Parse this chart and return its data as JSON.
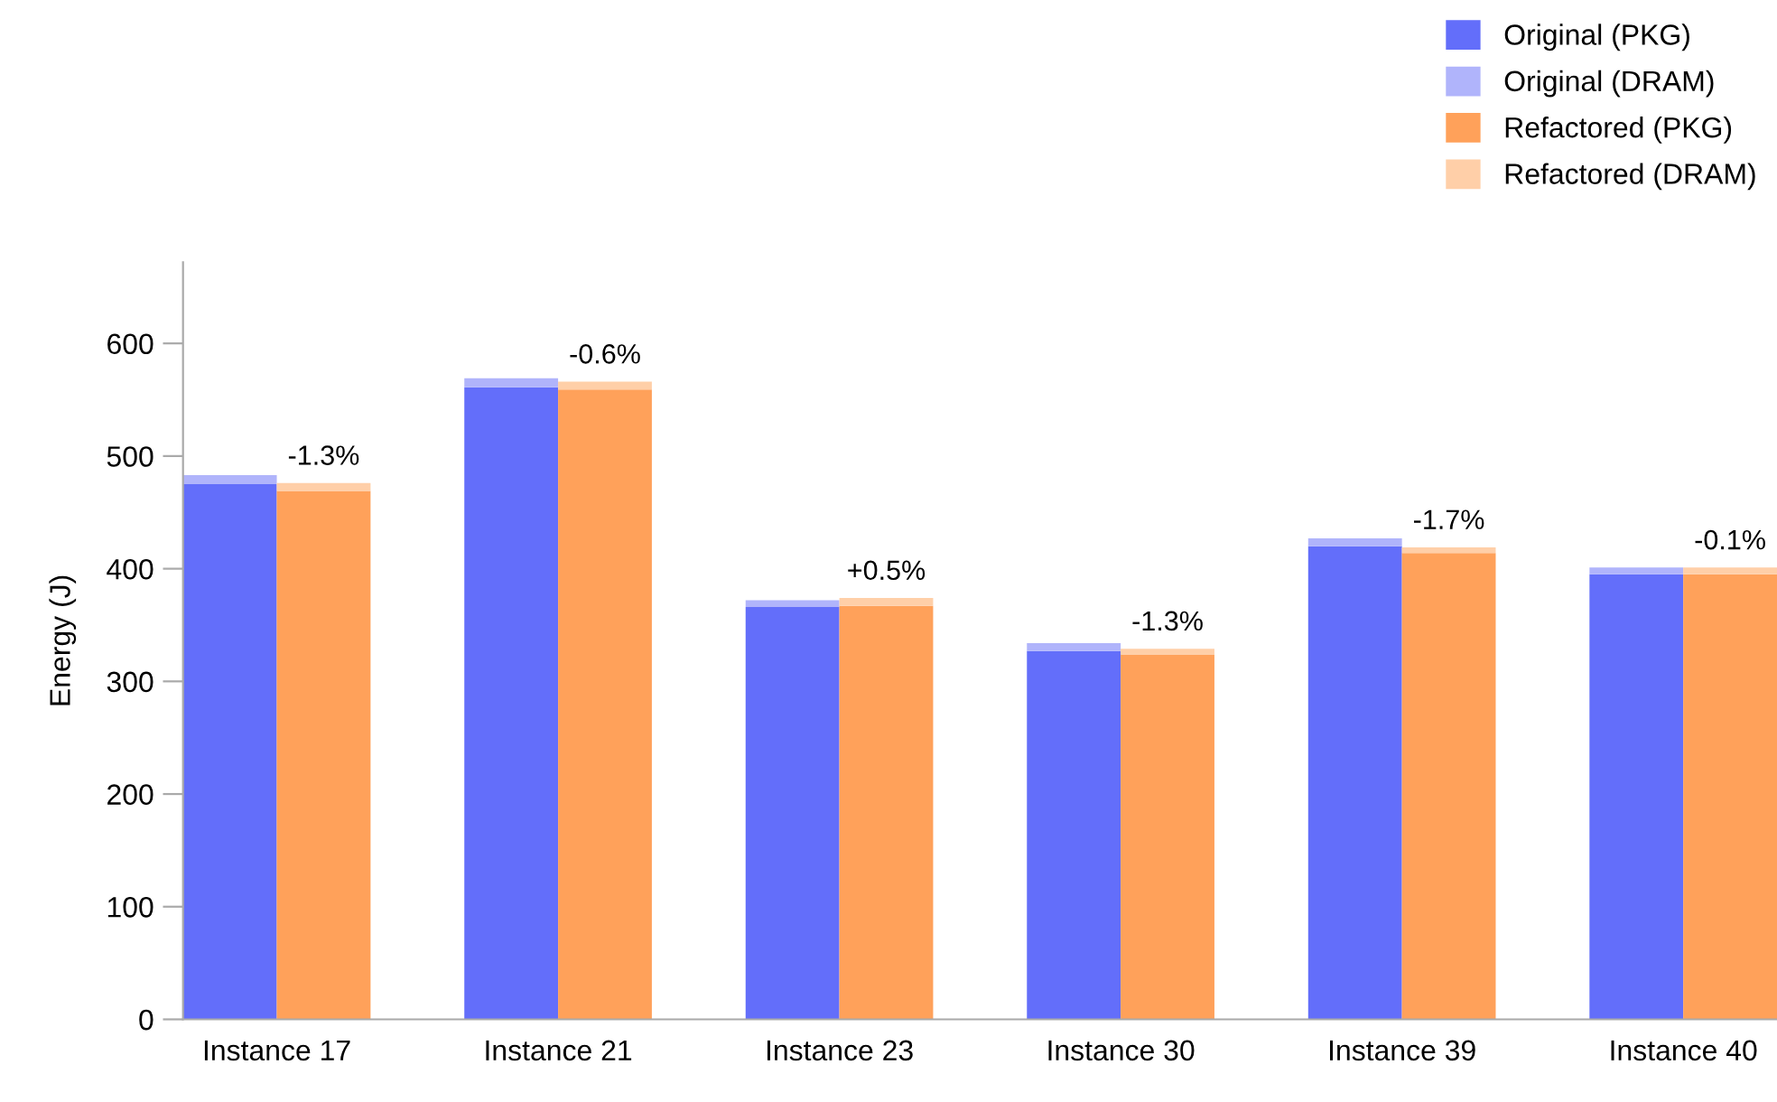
{
  "chart_data": {
    "type": "bar",
    "ylabel": "Energy (J)",
    "stacked": true,
    "categories": [
      "Instance 17",
      null,
      null,
      "Instance 21",
      null,
      null,
      "Instance 23",
      null,
      null,
      "Instance 30",
      null,
      null,
      "Instance 39",
      null,
      null,
      "Instance 40",
      null
    ],
    "series": [
      {
        "name": "Original (PKG)",
        "color": "#636efa",
        "values": [
          475,
          null,
          null,
          561,
          null,
          null,
          366,
          null,
          null,
          327,
          null,
          null,
          420,
          null,
          null,
          395,
          null
        ]
      },
      {
        "name": "Original (DRAM)",
        "color": "#b0b4fb",
        "values": [
          8,
          null,
          null,
          8,
          null,
          null,
          6,
          null,
          null,
          7,
          null,
          null,
          7,
          null,
          null,
          6,
          null
        ]
      },
      {
        "name": "Refactored (PKG)",
        "color": "#ffa15a",
        "values": [
          null,
          469,
          null,
          null,
          559,
          null,
          null,
          367,
          null,
          null,
          324,
          null,
          null,
          414,
          null,
          null,
          395
        ]
      },
      {
        "name": "Refactored (DRAM)",
        "color": "#ffcfa8",
        "values": [
          null,
          7,
          null,
          null,
          7,
          null,
          null,
          7,
          null,
          null,
          5,
          null,
          null,
          5,
          null,
          null,
          6
        ]
      }
    ],
    "ylim": [
      0,
      672
    ],
    "yticks": [
      0,
      100,
      200,
      300,
      400,
      500,
      600
    ],
    "grid": false,
    "legend": "top right",
    "annotations": [
      {
        "text": "-1.3%",
        "x": "Instance 17",
        "y": 476
      },
      {
        "text": "-0.6%",
        "x": "Instance 21",
        "y": 566
      },
      {
        "text": "+0.5%",
        "x": "Instance 23",
        "y": 374
      },
      {
        "text": "-1.3%",
        "x": "Instance 30",
        "y": 329
      },
      {
        "text": "-1.7%",
        "x": "Instance 39",
        "y": 419
      },
      {
        "text": "-0.1%",
        "x": "Instance 40",
        "y": 401
      }
    ]
  }
}
